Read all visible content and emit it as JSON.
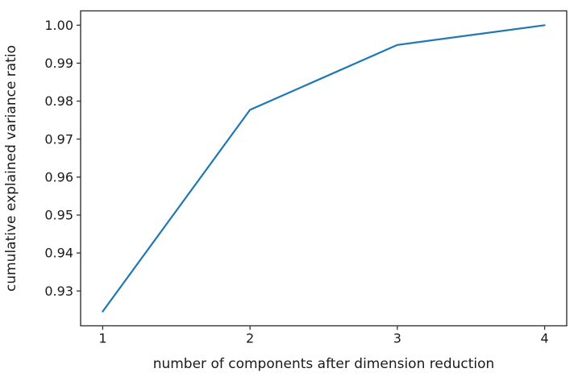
{
  "figure": {
    "background": "#ffffff"
  },
  "chart_data": {
    "type": "line",
    "title": "",
    "xlabel": "number of components after dimension reduction",
    "ylabel": "cumulative explained variance ratio",
    "x": [
      1,
      2,
      3,
      4
    ],
    "series": [
      {
        "name": "cumulative explained variance",
        "values": [
          0.9246,
          0.9777,
          0.9948,
          1.0
        ],
        "color": "#1f77b4"
      }
    ],
    "xticks": [
      {
        "value": 1,
        "label": "1"
      },
      {
        "value": 2,
        "label": "2"
      },
      {
        "value": 3,
        "label": "3"
      },
      {
        "value": 4,
        "label": "4"
      }
    ],
    "yticks": [
      {
        "value": 0.93,
        "label": "0.93"
      },
      {
        "value": 0.94,
        "label": "0.94"
      },
      {
        "value": 0.95,
        "label": "0.95"
      },
      {
        "value": 0.96,
        "label": "0.96"
      },
      {
        "value": 0.97,
        "label": "0.97"
      },
      {
        "value": 0.98,
        "label": "0.98"
      },
      {
        "value": 0.99,
        "label": "0.99"
      },
      {
        "value": 1.0,
        "label": "1.00"
      }
    ],
    "xlim": [
      0.85,
      4.15
    ],
    "ylim": [
      0.92083,
      1.00377
    ],
    "grid": false,
    "legend_position": "none",
    "spine_color": "#333333",
    "tick_color": "#333333",
    "text_color": "#1a1a1a"
  }
}
